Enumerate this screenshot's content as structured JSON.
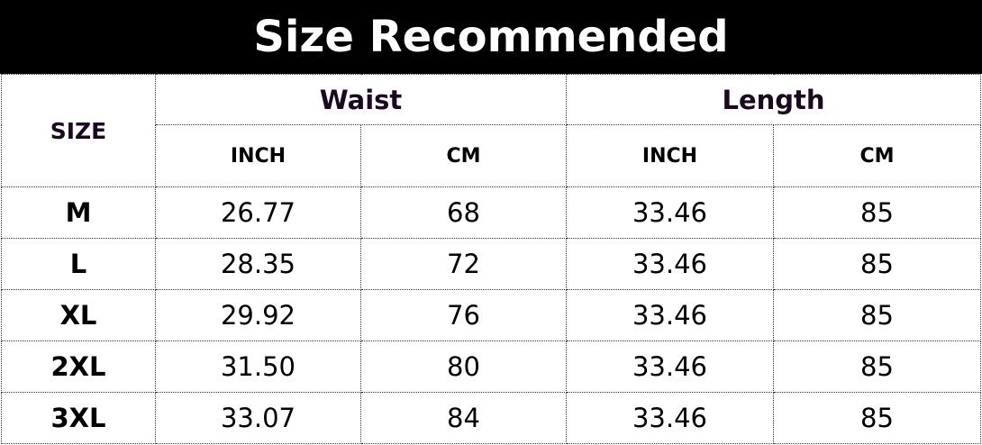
{
  "title": "Size Recommended",
  "headers": {
    "size": "SIZE",
    "waist": "Waist",
    "length": "Length",
    "units": [
      "INCH",
      "CM",
      "INCH",
      "CM"
    ]
  },
  "rows": [
    [
      "M",
      "26.77",
      "68",
      "33.46",
      "85"
    ],
    [
      "L",
      "28.35",
      "72",
      "33.46",
      "85"
    ],
    [
      "XL",
      "29.92",
      "76",
      "33.46",
      "85"
    ],
    [
      "2XL",
      "31.50",
      "80",
      "33.46",
      "85"
    ],
    [
      "3XL",
      "33.07",
      "84",
      "33.46",
      "85"
    ]
  ]
}
